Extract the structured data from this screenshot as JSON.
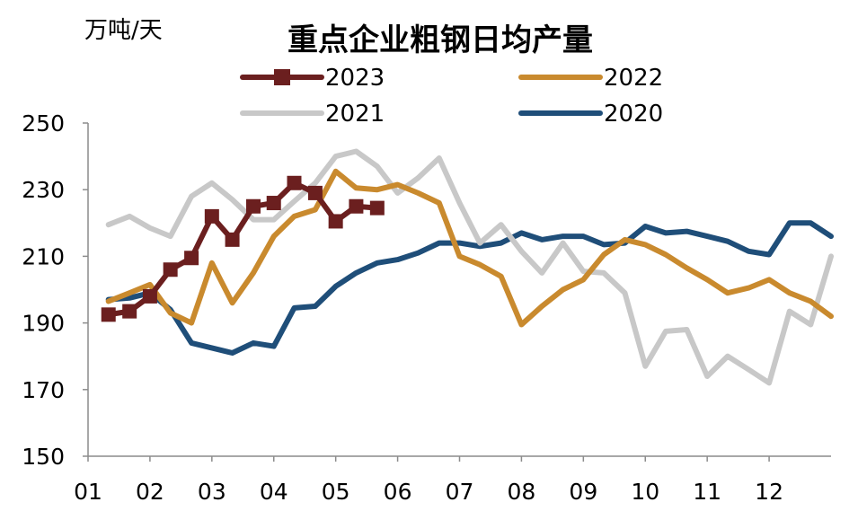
{
  "chart_data": {
    "type": "line",
    "title": "重点企业粗钢日均产量",
    "ylabel": "万吨/天",
    "xlabel": "",
    "ylim": [
      150,
      250
    ],
    "yticks": [
      "150",
      "170",
      "190",
      "210",
      "230",
      "250"
    ],
    "xticks": [
      "01",
      "02",
      "03",
      "04",
      "05",
      "06",
      "07",
      "08",
      "09",
      "10",
      "11",
      "12"
    ],
    "x_domain": [
      0,
      12
    ],
    "legend_position": "top",
    "grid": false,
    "series": [
      {
        "name": "2023",
        "color": "#6B1F1F",
        "marker": "square",
        "x": [
          0.33,
          0.67,
          1.0,
          1.33,
          1.67,
          2.0,
          2.33,
          2.67,
          3.0,
          3.33,
          3.67,
          4.0,
          4.33,
          4.67
        ],
        "values": [
          192.5,
          193.5,
          198,
          206,
          209.5,
          222,
          215,
          225,
          226,
          232,
          229,
          220.5,
          225,
          224.5
        ]
      },
      {
        "name": "2022",
        "color": "#C98A2E",
        "marker": "none",
        "x": [
          0.33,
          0.67,
          1.0,
          1.33,
          1.67,
          2.0,
          2.33,
          2.67,
          3.0,
          3.33,
          3.67,
          4.0,
          4.33,
          4.67,
          5.0,
          5.33,
          5.67,
          6.0,
          6.33,
          6.67,
          7.0,
          7.33,
          7.67,
          8.0,
          8.33,
          8.67,
          9.0,
          9.33,
          9.67,
          10.0,
          10.33,
          10.67,
          11.0,
          11.33,
          11.67,
          12.0
        ],
        "values": [
          196.5,
          199,
          201.5,
          193,
          190,
          208,
          196,
          205,
          216,
          222,
          224,
          235.5,
          230.5,
          230,
          231.5,
          229,
          226,
          210,
          207.5,
          204,
          189.5,
          195,
          200,
          203,
          210.5,
          215,
          213.5,
          210.5,
          206.5,
          203,
          199,
          200.5,
          203,
          199,
          196.5,
          192
        ]
      },
      {
        "name": "2021",
        "color": "#C8C8C8",
        "marker": "none",
        "x": [
          0.33,
          0.67,
          1.0,
          1.33,
          1.67,
          2.0,
          2.33,
          2.67,
          3.0,
          3.33,
          3.67,
          4.0,
          4.33,
          4.67,
          5.0,
          5.33,
          5.67,
          6.0,
          6.33,
          6.67,
          7.0,
          7.33,
          7.67,
          8.0,
          8.33,
          8.67,
          9.0,
          9.33,
          9.67,
          10.0,
          10.33,
          10.67,
          11.0,
          11.33,
          11.67,
          12.0
        ],
        "values": [
          219.5,
          222,
          218.5,
          216,
          228,
          232,
          227,
          221,
          221,
          226.5,
          232,
          240,
          241.5,
          237,
          229,
          233.5,
          239.5,
          226,
          214,
          219.5,
          211.5,
          205,
          214,
          205.5,
          205,
          199,
          177,
          187.5,
          188,
          174,
          180,
          176,
          172,
          193.5,
          189.5,
          210
        ]
      },
      {
        "name": "2020",
        "color": "#1F4E79",
        "marker": "none",
        "x": [
          0.33,
          0.67,
          1.0,
          1.33,
          1.67,
          2.0,
          2.33,
          2.67,
          3.0,
          3.33,
          3.67,
          4.0,
          4.33,
          4.67,
          5.0,
          5.33,
          5.67,
          6.0,
          6.33,
          6.67,
          7.0,
          7.33,
          7.67,
          8.0,
          8.33,
          8.67,
          9.0,
          9.33,
          9.67,
          10.0,
          10.33,
          10.67,
          11.0,
          11.33,
          11.67,
          12.0
        ],
        "values": [
          197,
          197.5,
          199,
          194,
          184,
          182.5,
          181,
          184,
          183,
          194.5,
          195,
          201,
          205,
          208,
          209,
          211,
          214,
          214,
          213,
          214,
          217,
          215,
          216,
          216,
          213.5,
          214,
          219,
          217,
          217.5,
          216,
          214.5,
          211.5,
          210.5,
          220,
          220,
          216
        ]
      }
    ]
  }
}
